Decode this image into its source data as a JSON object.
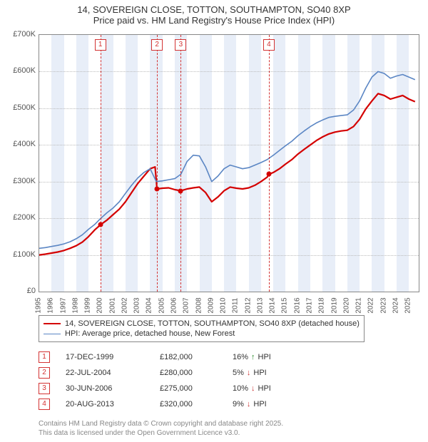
{
  "title_line1": "14, SOVEREIGN CLOSE, TOTTON, SOUTHAMPTON, SO40 8XP",
  "title_line2": "Price paid vs. HM Land Registry's House Price Index (HPI)",
  "chart": {
    "type": "line",
    "xlim": [
      1995,
      2025.8
    ],
    "ylim": [
      0,
      700000
    ],
    "ytick_step": 100000,
    "y_ticks": [
      {
        "v": 0,
        "label": "£0"
      },
      {
        "v": 100000,
        "label": "£100K"
      },
      {
        "v": 200000,
        "label": "£200K"
      },
      {
        "v": 300000,
        "label": "£300K"
      },
      {
        "v": 400000,
        "label": "£400K"
      },
      {
        "v": 500000,
        "label": "£500K"
      },
      {
        "v": 600000,
        "label": "£600K"
      },
      {
        "v": 700000,
        "label": "£700K"
      }
    ],
    "x_ticks": [
      1995,
      1996,
      1997,
      1998,
      1999,
      2000,
      2001,
      2002,
      2003,
      2004,
      2005,
      2006,
      2007,
      2008,
      2009,
      2010,
      2011,
      2012,
      2013,
      2014,
      2015,
      2016,
      2017,
      2018,
      2019,
      2020,
      2021,
      2022,
      2023,
      2024,
      2025
    ],
    "alt_band_color": "#e8eef8",
    "grid_color": "#bbbbbb",
    "background_color": "#ffffff",
    "marker_border_color": "#d33333",
    "series": [
      {
        "name": "property",
        "label": "14, SOVEREIGN CLOSE, TOTTON, SOUTHAMPTON, SO40 8XP (detached house)",
        "color": "#d40000",
        "line_width": 2.2,
        "data": [
          [
            1995.0,
            100000
          ],
          [
            1995.5,
            102000
          ],
          [
            1996.0,
            105000
          ],
          [
            1996.5,
            108000
          ],
          [
            1997.0,
            112000
          ],
          [
            1997.5,
            118000
          ],
          [
            1998.0,
            125000
          ],
          [
            1998.5,
            135000
          ],
          [
            1999.0,
            150000
          ],
          [
            1999.5,
            168000
          ],
          [
            1999.96,
            182000
          ],
          [
            2000.5,
            195000
          ],
          [
            2001.0,
            210000
          ],
          [
            2001.5,
            225000
          ],
          [
            2002.0,
            245000
          ],
          [
            2002.5,
            270000
          ],
          [
            2003.0,
            295000
          ],
          [
            2003.5,
            315000
          ],
          [
            2004.0,
            335000
          ],
          [
            2004.4,
            340000
          ],
          [
            2004.56,
            280000
          ],
          [
            2005.0,
            282000
          ],
          [
            2005.5,
            283000
          ],
          [
            2006.0,
            278000
          ],
          [
            2006.49,
            275000
          ],
          [
            2007.0,
            280000
          ],
          [
            2007.5,
            283000
          ],
          [
            2008.0,
            285000
          ],
          [
            2008.5,
            270000
          ],
          [
            2009.0,
            245000
          ],
          [
            2009.5,
            258000
          ],
          [
            2010.0,
            275000
          ],
          [
            2010.5,
            285000
          ],
          [
            2011.0,
            282000
          ],
          [
            2011.5,
            280000
          ],
          [
            2012.0,
            283000
          ],
          [
            2012.5,
            290000
          ],
          [
            2013.0,
            300000
          ],
          [
            2013.5,
            312000
          ],
          [
            2013.64,
            320000
          ],
          [
            2014.0,
            325000
          ],
          [
            2014.5,
            335000
          ],
          [
            2015.0,
            348000
          ],
          [
            2015.5,
            360000
          ],
          [
            2016.0,
            375000
          ],
          [
            2016.5,
            388000
          ],
          [
            2017.0,
            400000
          ],
          [
            2017.5,
            412000
          ],
          [
            2018.0,
            422000
          ],
          [
            2018.5,
            430000
          ],
          [
            2019.0,
            435000
          ],
          [
            2019.5,
            438000
          ],
          [
            2020.0,
            440000
          ],
          [
            2020.5,
            450000
          ],
          [
            2021.0,
            470000
          ],
          [
            2021.5,
            498000
          ],
          [
            2022.0,
            520000
          ],
          [
            2022.5,
            540000
          ],
          [
            2023.0,
            535000
          ],
          [
            2023.5,
            525000
          ],
          [
            2024.0,
            530000
          ],
          [
            2024.5,
            535000
          ],
          [
            2025.0,
            525000
          ],
          [
            2025.5,
            518000
          ]
        ]
      },
      {
        "name": "hpi",
        "label": "HPI: Average price, detached house, New Forest",
        "color": "#5b86c4",
        "line_width": 1.6,
        "data": [
          [
            1995.0,
            118000
          ],
          [
            1995.5,
            120000
          ],
          [
            1996.0,
            123000
          ],
          [
            1996.5,
            126000
          ],
          [
            1997.0,
            130000
          ],
          [
            1997.5,
            136000
          ],
          [
            1998.0,
            144000
          ],
          [
            1998.5,
            155000
          ],
          [
            1999.0,
            170000
          ],
          [
            1999.5,
            183000
          ],
          [
            2000.0,
            200000
          ],
          [
            2000.5,
            215000
          ],
          [
            2001.0,
            228000
          ],
          [
            2001.5,
            245000
          ],
          [
            2002.0,
            268000
          ],
          [
            2002.5,
            290000
          ],
          [
            2003.0,
            310000
          ],
          [
            2003.5,
            325000
          ],
          [
            2004.0,
            335000
          ],
          [
            2004.5,
            300000
          ],
          [
            2005.0,
            302000
          ],
          [
            2005.5,
            305000
          ],
          [
            2006.0,
            308000
          ],
          [
            2006.5,
            320000
          ],
          [
            2007.0,
            355000
          ],
          [
            2007.5,
            372000
          ],
          [
            2008.0,
            370000
          ],
          [
            2008.5,
            340000
          ],
          [
            2009.0,
            300000
          ],
          [
            2009.5,
            315000
          ],
          [
            2010.0,
            335000
          ],
          [
            2010.5,
            345000
          ],
          [
            2011.0,
            340000
          ],
          [
            2011.5,
            335000
          ],
          [
            2012.0,
            338000
          ],
          [
            2012.5,
            345000
          ],
          [
            2013.0,
            352000
          ],
          [
            2013.5,
            360000
          ],
          [
            2014.0,
            372000
          ],
          [
            2014.5,
            385000
          ],
          [
            2015.0,
            398000
          ],
          [
            2015.5,
            410000
          ],
          [
            2016.0,
            425000
          ],
          [
            2016.5,
            438000
          ],
          [
            2017.0,
            450000
          ],
          [
            2017.5,
            460000
          ],
          [
            2018.0,
            468000
          ],
          [
            2018.5,
            475000
          ],
          [
            2019.0,
            478000
          ],
          [
            2019.5,
            480000
          ],
          [
            2020.0,
            482000
          ],
          [
            2020.5,
            495000
          ],
          [
            2021.0,
            520000
          ],
          [
            2021.5,
            555000
          ],
          [
            2022.0,
            585000
          ],
          [
            2022.5,
            600000
          ],
          [
            2023.0,
            595000
          ],
          [
            2023.5,
            582000
          ],
          [
            2024.0,
            588000
          ],
          [
            2024.5,
            592000
          ],
          [
            2025.0,
            585000
          ],
          [
            2025.5,
            578000
          ]
        ]
      }
    ],
    "sale_markers": [
      {
        "n": "1",
        "x": 1999.96,
        "y": 182000
      },
      {
        "n": "2",
        "x": 2004.56,
        "y": 280000
      },
      {
        "n": "3",
        "x": 2006.49,
        "y": 275000
      },
      {
        "n": "4",
        "x": 2013.64,
        "y": 320000
      }
    ]
  },
  "sales": [
    {
      "n": "1",
      "date": "17-DEC-1999",
      "price": "£182,000",
      "pct": "16%",
      "dir": "up",
      "suffix": "HPI"
    },
    {
      "n": "2",
      "date": "22-JUL-2004",
      "price": "£280,000",
      "pct": "5%",
      "dir": "down",
      "suffix": "HPI"
    },
    {
      "n": "3",
      "date": "30-JUN-2006",
      "price": "£275,000",
      "pct": "10%",
      "dir": "down",
      "suffix": "HPI"
    },
    {
      "n": "4",
      "date": "20-AUG-2013",
      "price": "£320,000",
      "pct": "9%",
      "dir": "down",
      "suffix": "HPI"
    }
  ],
  "arrows": {
    "up": "↑",
    "down": "↓"
  },
  "arrow_colors": {
    "up": "#2a8a2a",
    "down": "#cc3333"
  },
  "footer_line1": "Contains HM Land Registry data © Crown copyright and database right 2025.",
  "footer_line2": "This data is licensed under the Open Government Licence v3.0."
}
